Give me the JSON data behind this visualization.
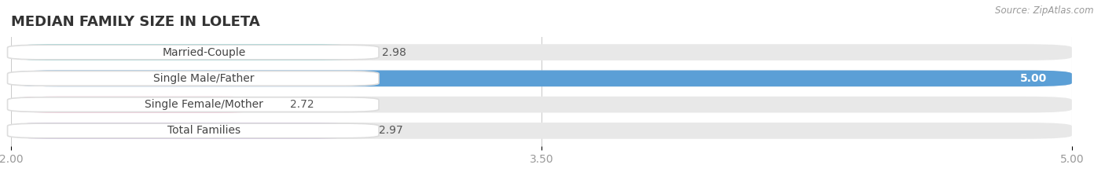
{
  "title": "MEDIAN FAMILY SIZE IN LOLETA",
  "source": "Source: ZipAtlas.com",
  "categories": [
    "Married-Couple",
    "Single Male/Father",
    "Single Female/Mother",
    "Total Families"
  ],
  "values": [
    2.98,
    5.0,
    2.72,
    2.97
  ],
  "colors": [
    "#5ecfcf",
    "#5b9fd6",
    "#f4a8c4",
    "#c4a8e0"
  ],
  "bar_background": "#e8e8e8",
  "label_bg": "#ffffff",
  "xlim_min": 2.0,
  "xlim_max": 5.0,
  "xticks": [
    2.0,
    3.5,
    5.0
  ],
  "bar_height": 0.62,
  "title_fontsize": 13,
  "label_fontsize": 10,
  "value_fontsize": 10,
  "tick_fontsize": 10,
  "background_color": "#ffffff"
}
